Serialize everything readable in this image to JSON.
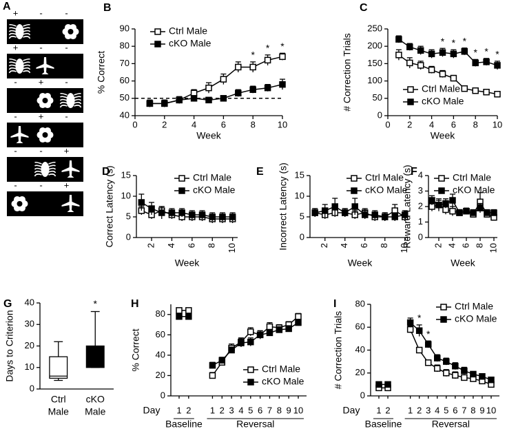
{
  "stimulus_panel": {
    "panel": "A",
    "rows": [
      [
        "+",
        "-",
        "-"
      ],
      [
        "+",
        "-",
        "-"
      ],
      [
        "-",
        "+",
        "-"
      ],
      [
        "-",
        "+",
        "-"
      ],
      [
        "-",
        "-",
        "+"
      ],
      [
        "-",
        "-",
        "+"
      ]
    ]
  },
  "chart_data": [
    {
      "type": "line",
      "panel": "B",
      "y_label": "% Correct",
      "x_label": "Week",
      "x": [
        1,
        2,
        3,
        4,
        5,
        6,
        7,
        8,
        9,
        10
      ],
      "xlim": [
        0,
        10
      ],
      "xticks": [
        0,
        2,
        4,
        6,
        8,
        10
      ],
      "ylim": [
        40,
        90
      ],
      "yticks": [
        40,
        50,
        60,
        70,
        80,
        90
      ],
      "reference_line": 50,
      "legend": "upper left",
      "series": [
        {
          "name": "Ctrl Male",
          "color": "#000000",
          "marker_fill": "#ffffff",
          "values": [
            47,
            47,
            49,
            53,
            56,
            61,
            68,
            68,
            72,
            74
          ],
          "errors": [
            2,
            2,
            2,
            2,
            3,
            3,
            3,
            3,
            3,
            2
          ]
        },
        {
          "name": "cKO Male",
          "color": "#000000",
          "marker_fill": "#000000",
          "values": [
            47,
            47,
            49,
            50,
            49,
            50,
            53,
            55,
            56,
            58
          ],
          "errors": [
            2,
            2,
            1,
            1,
            1,
            1,
            2,
            2,
            2,
            3
          ]
        }
      ],
      "significance": [
        null,
        null,
        null,
        null,
        null,
        null,
        null,
        "*",
        "*",
        "*"
      ]
    },
    {
      "type": "line",
      "panel": "C",
      "y_label": "# Correction Trials",
      "x_label": "Week",
      "x": [
        1,
        2,
        3,
        4,
        5,
        6,
        7,
        8,
        9,
        10
      ],
      "xlim": [
        0,
        10
      ],
      "xticks": [
        0,
        2,
        4,
        6,
        8,
        10
      ],
      "ylim": [
        0,
        250
      ],
      "yticks": [
        0,
        50,
        100,
        150,
        200,
        250
      ],
      "legend": "lower left",
      "series": [
        {
          "name": "Ctrl Male",
          "color": "#000000",
          "marker_fill": "#ffffff",
          "values": [
            175,
            152,
            145,
            132,
            120,
            108,
            78,
            72,
            68,
            62
          ],
          "errors": [
            15,
            15,
            12,
            10,
            10,
            8,
            5,
            5,
            5,
            5
          ]
        },
        {
          "name": "cKO Male",
          "color": "#000000",
          "marker_fill": "#000000",
          "values": [
            220,
            198,
            188,
            178,
            182,
            178,
            185,
            152,
            155,
            145
          ],
          "errors": [
            10,
            10,
            12,
            12,
            12,
            12,
            10,
            10,
            10,
            12
          ]
        }
      ],
      "significance": [
        null,
        null,
        null,
        null,
        "*",
        "*",
        "*",
        "*",
        "*",
        "*"
      ]
    },
    {
      "type": "line",
      "panel": "D",
      "y_label": "Correct Latency (s)",
      "x_label": "Week",
      "x": [
        1,
        2,
        3,
        4,
        5,
        6,
        7,
        8,
        9,
        10
      ],
      "xlim": [
        0.5,
        10.5
      ],
      "xticks": [
        2,
        4,
        6,
        8,
        10
      ],
      "rotated_xticks": true,
      "ylim": [
        0,
        15
      ],
      "yticks": [
        0,
        5,
        10,
        15
      ],
      "legend": "upper right",
      "series": [
        {
          "name": "Ctrl Male",
          "color": "#000000",
          "marker_fill": "#ffffff",
          "values": [
            6.5,
            5.5,
            6.5,
            5.5,
            5,
            5,
            5,
            4.5,
            4.5,
            4.5
          ],
          "errors": [
            1,
            1,
            1,
            1,
            1,
            1,
            1,
            1,
            1,
            1
          ]
        },
        {
          "name": "cKO Male",
          "color": "#000000",
          "marker_fill": "#000000",
          "values": [
            8.5,
            7,
            6,
            6,
            6,
            5.5,
            5.5,
            5,
            5,
            5
          ],
          "errors": [
            2,
            1.5,
            1.5,
            1,
            1,
            1,
            1,
            1,
            1,
            1
          ]
        }
      ]
    },
    {
      "type": "line",
      "panel": "E",
      "y_label": "Incorrect Latency (s)",
      "x_label": "Week",
      "x": [
        1,
        2,
        3,
        4,
        5,
        6,
        7,
        8,
        9,
        10
      ],
      "xlim": [
        0.5,
        10.5
      ],
      "xticks": [
        2,
        4,
        6,
        8,
        10
      ],
      "rotated_xticks": true,
      "ylim": [
        0,
        15
      ],
      "yticks": [
        0,
        5,
        10,
        15
      ],
      "legend": "upper right",
      "series": [
        {
          "name": "Ctrl Male",
          "color": "#000000",
          "marker_fill": "#ffffff",
          "values": [
            6,
            5.5,
            6,
            6,
            5.5,
            6,
            5,
            5,
            6.5,
            5
          ],
          "errors": [
            1,
            1,
            1,
            1,
            1,
            1,
            1,
            1,
            1.5,
            1
          ]
        },
        {
          "name": "cKO Male",
          "color": "#000000",
          "marker_fill": "#000000",
          "values": [
            6,
            6.5,
            7.5,
            6,
            7.5,
            5.5,
            5.5,
            5,
            5,
            5.5
          ],
          "errors": [
            1,
            1.5,
            2,
            1,
            2,
            1,
            1,
            1,
            1,
            1
          ]
        }
      ]
    },
    {
      "type": "line",
      "panel": "F",
      "y_label": "Reward Latency (s)",
      "x_label": "Week",
      "x": [
        1,
        2,
        3,
        4,
        5,
        6,
        7,
        8,
        9,
        10
      ],
      "xlim": [
        0.5,
        10.5
      ],
      "xticks": [
        2,
        4,
        6,
        8,
        10
      ],
      "rotated_xticks": true,
      "ylim": [
        0,
        4
      ],
      "yticks": [
        0,
        1,
        2,
        3,
        4
      ],
      "legend": "upper right",
      "series": [
        {
          "name": "Ctrl Male",
          "color": "#000000",
          "marker_fill": "#ffffff",
          "values": [
            2,
            2.1,
            1.8,
            1.7,
            1.6,
            1.7,
            1.5,
            2.3,
            1.5,
            1.3
          ],
          "errors": [
            0.3,
            0.4,
            0.3,
            0.3,
            0.2,
            0.2,
            0.2,
            0.6,
            0.2,
            0.2
          ]
        },
        {
          "name": "cKO Male",
          "color": "#000000",
          "marker_fill": "#000000",
          "values": [
            2.4,
            2.1,
            2.2,
            2.4,
            1.6,
            1.7,
            1.6,
            1.9,
            1.6,
            1.6
          ],
          "errors": [
            0.3,
            0.3,
            0.3,
            0.4,
            0.2,
            0.2,
            0.2,
            0.3,
            0.2,
            0.2
          ]
        }
      ]
    },
    {
      "type": "box",
      "panel": "G",
      "y_label": "Days to Criterion",
      "categories": [
        [
          "Ctrl",
          "Male"
        ],
        [
          "cKO",
          "Male"
        ]
      ],
      "ylim": [
        0,
        40
      ],
      "yticks": [
        0,
        10,
        20,
        30,
        40
      ],
      "colors": [
        "#ffffff",
        "#000000"
      ],
      "boxes": [
        {
          "min": 4,
          "q1": 5,
          "median": 6,
          "q3": 15,
          "max": 22
        },
        {
          "min": 10,
          "q1": 10,
          "median": 13,
          "q3": 20,
          "max": 36
        }
      ],
      "significance": [
        null,
        "*"
      ]
    },
    {
      "type": "line",
      "panel": "H",
      "y_label": "% Correct",
      "x_label": "Day",
      "ylim": [
        0,
        90
      ],
      "yticks": [
        0,
        20,
        40,
        60,
        80
      ],
      "legend": "lower right",
      "groups": [
        {
          "label": "Baseline",
          "categories": [
            "1",
            "2"
          ]
        },
        {
          "label": "Reversal",
          "categories": [
            "1",
            "2",
            "3",
            "4",
            "5",
            "6",
            "7",
            "8",
            "9",
            "10"
          ]
        }
      ],
      "series": [
        {
          "name": "Ctrl Male",
          "color": "#000000",
          "marker_fill": "#ffffff",
          "values": [
            [
              84,
              84
            ],
            [
              20,
              33,
              47,
              53,
              63,
              60,
              68,
              67,
              70,
              78
            ]
          ],
          "errors": [
            [
              2,
              2
            ],
            [
              3,
              3,
              4,
              4,
              4,
              4,
              4,
              3,
              3,
              3
            ]
          ]
        },
        {
          "name": "cKO Male",
          "color": "#000000",
          "marker_fill": "#000000",
          "values": [
            [
              78,
              78
            ],
            [
              30,
              35,
              45,
              52,
              53,
              60,
              62,
              65,
              66,
              72
            ]
          ],
          "errors": [
            [
              2,
              2
            ],
            [
              3,
              3,
              3,
              4,
              4,
              4,
              3,
              3,
              3,
              3
            ]
          ]
        }
      ]
    },
    {
      "type": "line",
      "panel": "I",
      "y_label": "# Correction Trials",
      "x_label": "Day",
      "ylim": [
        0,
        80
      ],
      "yticks": [
        0,
        20,
        40,
        60,
        80
      ],
      "legend": "upper right",
      "groups": [
        {
          "label": "Baseline",
          "categories": [
            "1",
            "2"
          ]
        },
        {
          "label": "Reversal",
          "categories": [
            "1",
            "2",
            "3",
            "4",
            "5",
            "6",
            "7",
            "8",
            "9",
            "10"
          ]
        }
      ],
      "series": [
        {
          "name": "Ctrl Male",
          "color": "#000000",
          "marker_fill": "#ffffff",
          "values": [
            [
              7,
              7
            ],
            [
              58,
              40,
              29,
              24,
              20,
              18,
              16,
              15,
              13,
              10
            ]
          ],
          "errors": [
            [
              2,
              2
            ],
            [
              3,
              2,
              2,
              3,
              3,
              3,
              2,
              2,
              2,
              2
            ]
          ]
        },
        {
          "name": "cKO Male",
          "color": "#000000",
          "marker_fill": "#000000",
          "values": [
            [
              10,
              10
            ],
            [
              64,
              57,
              45,
              33,
              30,
              26,
              22,
              19,
              17,
              14
            ]
          ],
          "errors": [
            [
              2,
              2
            ],
            [
              4,
              5,
              3,
              3,
              3,
              3,
              3,
              2,
              2,
              2
            ]
          ]
        }
      ],
      "significance": [
        [
          null,
          null
        ],
        [
          null,
          "*",
          "*",
          null,
          null,
          null,
          null,
          null,
          null,
          null
        ]
      ]
    }
  ]
}
